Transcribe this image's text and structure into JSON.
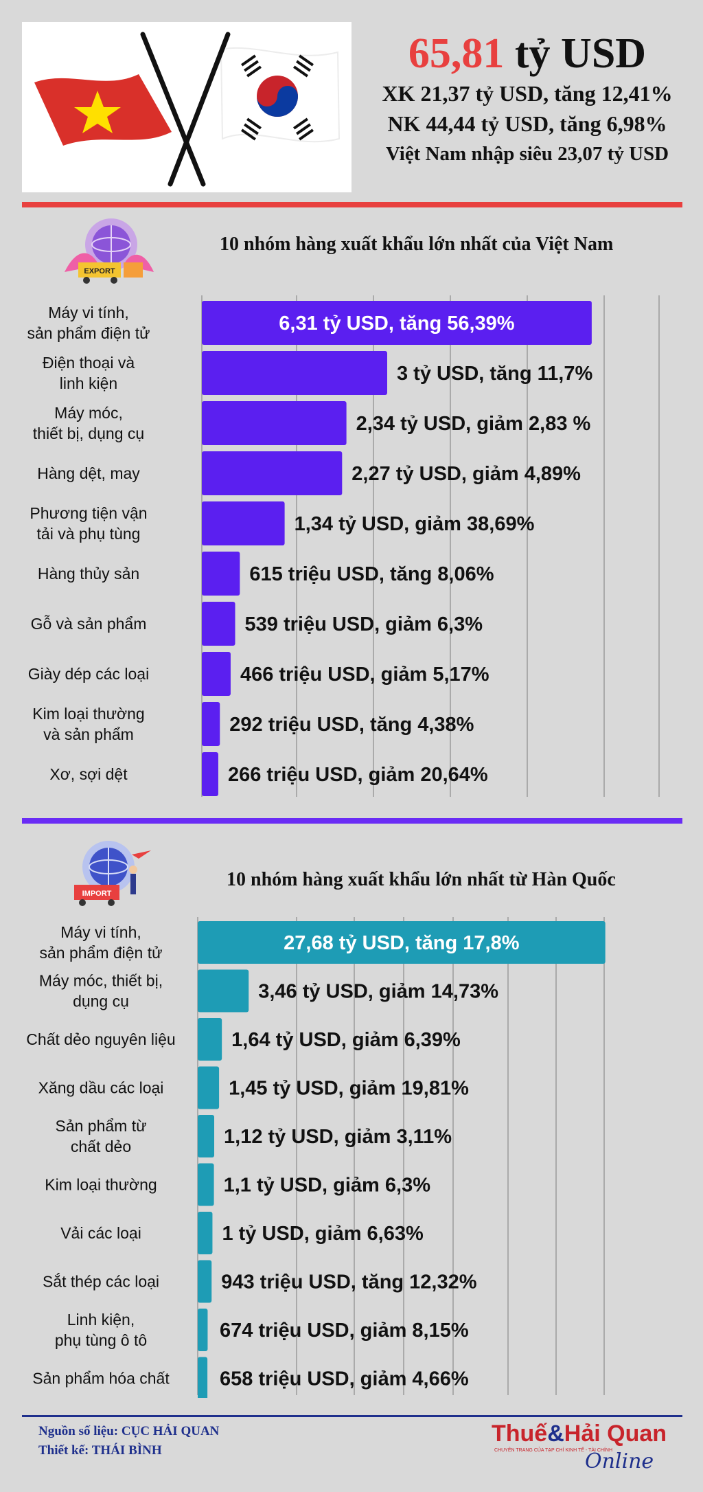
{
  "header": {
    "total_value": "65,81",
    "total_unit": "tỷ USD",
    "export_line": "XK 21,37 tỷ USD, tăng 12,41%",
    "import_line": "NK 44,44 tỷ USD, tăng 6,98%",
    "deficit_line": "Việt Nam nhập siêu 23,07 tỷ USD"
  },
  "colors": {
    "red": "#e8403f",
    "export_bar": "#5b1ff0",
    "import_bar": "#1e9cb5",
    "purple_divider": "#6a2cf5",
    "navy": "#1e2f8c"
  },
  "icons": {
    "flags": "vietnam-korea-crossed-flags-icon",
    "export": "export-globe-icon",
    "import": "import-globe-icon"
  },
  "export_section": {
    "title": "10 nhóm hàng xuất khẩu lớn nhất của Việt Nam",
    "icon_label": "EXPORT"
  },
  "import_section": {
    "title": "10 nhóm hàng xuất khẩu lớn nhất  từ Hàn Quốc",
    "icon_label": "IMPORT"
  },
  "chart_data": [
    {
      "type": "bar",
      "orientation": "horizontal",
      "title": "10 nhóm hàng xuất khẩu lớn nhất của Việt Nam",
      "unit": "tỷ USD",
      "categories": [
        "Máy vi tính,\nsản phẩm điện tử",
        "Điện thoại và\nlinh kiện",
        "Máy móc,\nthiết bị, dụng cụ",
        "Hàng dệt, may",
        "Phương tiện vận\ntải và phụ tùng",
        "Hàng thủy sản",
        "Gỗ và sản phẩm",
        "Giày dép các loại",
        "Kim loại thường\nvà sản phẩm",
        "Xơ, sợi dệt"
      ],
      "values": [
        6.31,
        3.0,
        2.34,
        2.27,
        1.34,
        0.615,
        0.539,
        0.466,
        0.292,
        0.266
      ],
      "labels": [
        "6,31 tỷ USD, tăng 56,39%",
        "3 tỷ USD, tăng  11,7%",
        "2,34 tỷ USD, giảm 2,83 %",
        "2,27 tỷ USD, giảm 4,89%",
        "1,34 tỷ USD, giảm 38,69%",
        "615 triệu USD, tăng  8,06%",
        "539 triệu USD, giảm  6,3%",
        "466 triệu USD, giảm  5,17%",
        "292 triệu USD, tăng  4,38%",
        "266 triệu USD, giảm  20,64%"
      ],
      "xlim": [
        0,
        7
      ],
      "grid": true,
      "color": "#5b1ff0"
    },
    {
      "type": "bar",
      "orientation": "horizontal",
      "title": "10 nhóm hàng xuất khẩu lớn nhất  từ Hàn Quốc",
      "unit": "tỷ USD",
      "categories": [
        "Máy vi tính,\nsản phẩm điện tử",
        "Máy móc, thiết bị,\ndụng cụ",
        "Chất dẻo nguyên liệu",
        "Xăng dầu các loại",
        "Sản phẩm từ\nchất dẻo",
        "Kim loại thường",
        "Vải các loại",
        "Sắt thép các loại",
        "Linh kiện,\nphụ tùng ô tô",
        "Sản phẩm hóa chất"
      ],
      "values": [
        27.68,
        3.46,
        1.64,
        1.45,
        1.12,
        1.1,
        1.0,
        0.943,
        0.674,
        0.658
      ],
      "labels": [
        "27,68 tỷ USD, tăng  17,8%",
        "3,46 tỷ USD, giảm 14,73%",
        "1,64 tỷ USD, giảm 6,39%",
        "1,45 tỷ USD, giảm 19,81%",
        "1,12 tỷ USD, giảm 3,11%",
        "1,1 tỷ USD, giảm 6,3%",
        "1 tỷ USD,  giảm 6,63%",
        "943 triệu USD,  tăng 12,32%",
        "674 triệu USD,  giảm 8,15%",
        "658 triệu USD,  giảm 4,66%"
      ],
      "xlim": [
        0,
        29
      ],
      "grid": true,
      "color": "#1e9cb5"
    }
  ],
  "footer": {
    "source": "Nguồn số liệu: CỤC HẢI QUAN",
    "design": "Thiết kế: THÁI BÌNH",
    "logo_part1": "Thuế",
    "logo_amp": "&",
    "logo_part2": "Hải Quan",
    "logo_tagline": "CHUYÊN TRANG CỦA TẠP CHÍ KINH TẾ - TÀI CHÍNH",
    "logo_online": "Online"
  }
}
